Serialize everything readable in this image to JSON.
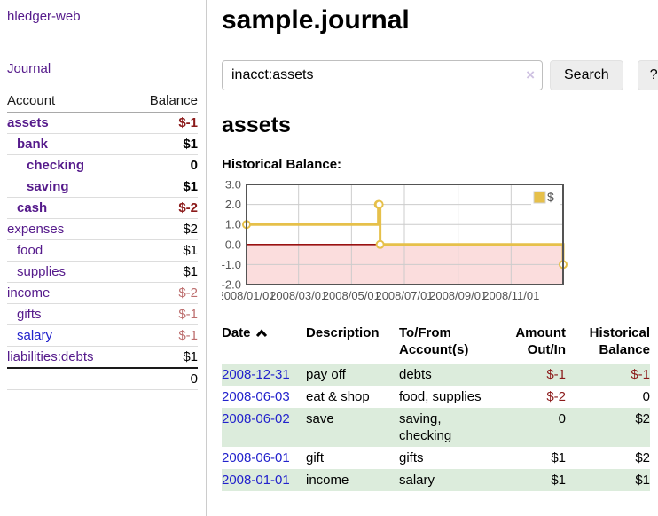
{
  "colors": {
    "link_visited": "#551a8b",
    "link_new": "#2222cc",
    "negative_strong": "#8b1a1a",
    "negative_light": "#bd6e6e",
    "row_stripe": "#dcecdc"
  },
  "sidebar": {
    "brand": "hledger-web",
    "nav_journal": "Journal",
    "accounts": {
      "header_account": "Account",
      "header_balance": "Balance",
      "rows": [
        {
          "name": "assets",
          "depth": 1,
          "bold": true,
          "balance": "$-1",
          "neg": "strong"
        },
        {
          "name": "bank",
          "depth": 2,
          "bold": true,
          "balance": "$1",
          "neg": null
        },
        {
          "name": "checking",
          "depth": 3,
          "bold": true,
          "balance": "0",
          "neg": null
        },
        {
          "name": "saving",
          "depth": 3,
          "bold": true,
          "balance": "$1",
          "neg": null
        },
        {
          "name": "cash",
          "depth": 2,
          "bold": true,
          "balance": "$-2",
          "neg": "strong"
        },
        {
          "name": "expenses",
          "depth": 1,
          "bold": false,
          "balance": "$2",
          "neg": null
        },
        {
          "name": "food",
          "depth": 2,
          "bold": false,
          "balance": "$1",
          "neg": null
        },
        {
          "name": "supplies",
          "depth": 2,
          "bold": false,
          "balance": "$1",
          "neg": null
        },
        {
          "name": "income",
          "depth": 1,
          "bold": false,
          "balance": "$-2",
          "neg": "light"
        },
        {
          "name": "gifts",
          "depth": 2,
          "bold": false,
          "balance": "$-1",
          "neg": "light"
        },
        {
          "name": "salary",
          "depth": 2,
          "bold": false,
          "balance": "$-1",
          "neg": "light",
          "link": "new"
        },
        {
          "name": "liabilities:debts",
          "depth": 1,
          "bold": false,
          "balance": "$1",
          "neg": null
        }
      ],
      "total": "0"
    }
  },
  "main": {
    "title": "sample.journal",
    "search": {
      "value": "inacct:assets",
      "clear_icon": "×",
      "button_label": "Search",
      "help_label": "?"
    },
    "account_heading": "assets"
  },
  "chart_data": {
    "type": "line",
    "title": "Historical Balance:",
    "step": true,
    "xlim": [
      "2008-01-01",
      "2008-12-31"
    ],
    "ylim": [
      -2,
      3
    ],
    "x_ticks": [
      "2008/01/01",
      "2008/03/01",
      "2008/05/01",
      "2008/07/01",
      "2008/09/01",
      "2008/11/01"
    ],
    "y_ticks": [
      3.0,
      2.0,
      1.0,
      0.0,
      -1.0,
      -2.0
    ],
    "series": [
      {
        "name": "$",
        "color": "#e6c04a",
        "points": [
          [
            "2008-01-01",
            1
          ],
          [
            "2008-06-01",
            2
          ],
          [
            "2008-06-02",
            2
          ],
          [
            "2008-06-03",
            0
          ],
          [
            "2008-12-31",
            -1
          ]
        ]
      }
    ],
    "legend": {
      "label": "$",
      "position": "top-right",
      "swatch_color": "#e6c04a"
    },
    "negative_region_color": "#fbdddd",
    "zero_line_color": "#991111",
    "grid_color": "#cccccc",
    "border_color": "#545454",
    "tick_label_color": "#545454"
  },
  "register": {
    "headers": {
      "date": "Date",
      "description": "Description",
      "accounts": "To/From Account(s)",
      "amount": "Amount Out/In",
      "balance": "Historical Balance"
    },
    "sort_icon": "chevron-up",
    "rows": [
      {
        "date": "2008-12-31",
        "description": "pay off",
        "accounts": "debts",
        "amount": "$-1",
        "amount_neg": true,
        "balance": "$-1",
        "balance_neg": true
      },
      {
        "date": "2008-06-03",
        "description": "eat & shop",
        "accounts": "food, supplies",
        "amount": "$-2",
        "amount_neg": true,
        "balance": "0",
        "balance_neg": false
      },
      {
        "date": "2008-06-02",
        "description": "save",
        "accounts": "saving, checking",
        "amount": "0",
        "amount_neg": false,
        "balance": "$2",
        "balance_neg": false
      },
      {
        "date": "2008-06-01",
        "description": "gift",
        "accounts": "gifts",
        "amount": "$1",
        "amount_neg": false,
        "balance": "$2",
        "balance_neg": false
      },
      {
        "date": "2008-01-01",
        "description": "income",
        "accounts": "salary",
        "amount": "$1",
        "amount_neg": false,
        "balance": "$1",
        "balance_neg": false
      }
    ]
  }
}
